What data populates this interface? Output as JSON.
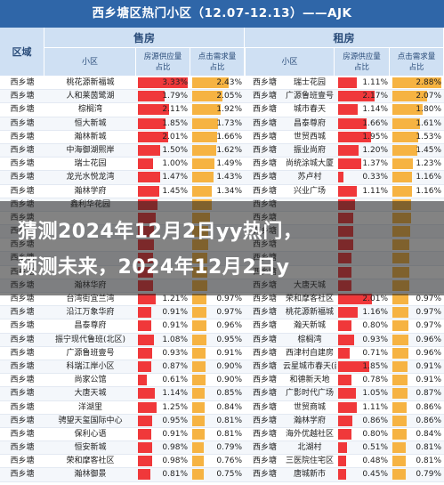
{
  "title": "西乡塘区热门小区（12.07-12.13）——AJK",
  "headers": {
    "district": "区域",
    "sale": "售房",
    "rent": "租房",
    "community": "小区",
    "supply": "房源供应量占比",
    "demand": "点击需求量占比"
  },
  "overlay": {
    "line1": "猜测2024年12月2日yy热门，",
    "line2": "预测未来，2024年12月2日y"
  },
  "colors": {
    "red": "#f0383a",
    "orange": "#f6b342"
  },
  "rows": [
    {
      "d": "西乡塘",
      "s": "桃花源新福城",
      "s1": "3.33%",
      "s1v": 3.33,
      "s2": "2.43%",
      "s2v": 2.43,
      "r": "西乡塘",
      "rc": "瑞士花园",
      "r1": "1.11%",
      "r1v": 1.11,
      "r2": "2.88%",
      "r2v": 2.88
    },
    {
      "d": "西乡塘",
      "s": "人和莱茵鹭湖",
      "s1": "1.79%",
      "s1v": 1.79,
      "s2": "2.05%",
      "s2v": 2.05,
      "r": "西乡塘",
      "rc": "广源鲁班壹号",
      "r1": "2.17%",
      "r1v": 2.17,
      "r2": "2.07%",
      "r2v": 2.07
    },
    {
      "d": "西乡塘",
      "s": "棕榈湾",
      "s1": "2.11%",
      "s1v": 2.11,
      "s2": "1.92%",
      "s2v": 1.92,
      "r": "西乡塘",
      "rc": "城市春天",
      "r1": "1.14%",
      "r1v": 1.14,
      "r2": "1.80%",
      "r2v": 1.8
    },
    {
      "d": "西乡塘",
      "s": "恒大新城",
      "s1": "1.85%",
      "s1v": 1.85,
      "s2": "1.73%",
      "s2v": 1.73,
      "r": "西乡塘",
      "rc": "昌泰尊府",
      "r1": "1.66%",
      "r1v": 1.66,
      "r2": "1.61%",
      "r2v": 1.61
    },
    {
      "d": "西乡塘",
      "s": "瀚林新城",
      "s1": "2.01%",
      "s1v": 2.01,
      "s2": "1.66%",
      "s2v": 1.66,
      "r": "西乡塘",
      "rc": "世贸西城",
      "r1": "1.95%",
      "r1v": 1.95,
      "r2": "1.53%",
      "r2v": 1.53
    },
    {
      "d": "西乡塘",
      "s": "中海御湖熙岸",
      "s1": "1.50%",
      "s1v": 1.5,
      "s2": "1.62%",
      "s2v": 1.62,
      "r": "西乡塘",
      "rc": "振业尚府",
      "r1": "1.20%",
      "r1v": 1.2,
      "r2": "1.45%",
      "r2v": 1.45
    },
    {
      "d": "西乡塘",
      "s": "瑞士花园",
      "s1": "1.00%",
      "s1v": 1.0,
      "s2": "1.49%",
      "s2v": 1.49,
      "r": "西乡塘",
      "rc": "尚统涂城大厦",
      "r1": "1.37%",
      "r1v": 1.37,
      "r2": "1.23%",
      "r2v": 1.23
    },
    {
      "d": "西乡塘",
      "s": "龙光水悦龙湾",
      "s1": "1.47%",
      "s1v": 1.47,
      "s2": "1.43%",
      "s2v": 1.43,
      "r": "西乡塘",
      "rc": "苏卢村",
      "r1": "0.33%",
      "r1v": 0.33,
      "r2": "1.16%",
      "r2v": 1.16
    },
    {
      "d": "西乡塘",
      "s": "瀚林学府",
      "s1": "1.45%",
      "s1v": 1.45,
      "s2": "1.34%",
      "s2v": 1.34,
      "r": "西乡塘",
      "rc": "兴业广场",
      "r1": "1.11%",
      "r1v": 1.11,
      "r2": "1.16%",
      "r2v": 1.16
    },
    {
      "d": "西乡塘",
      "s": "鑫利华花园",
      "s1": "",
      "s1v": 1.3,
      "s2": "",
      "s2v": 1.3,
      "r": "西乡塘",
      "rc": "",
      "r1": "",
      "r1v": 1.0,
      "r2": "",
      "r2v": 1.1
    },
    {
      "d": "西乡塘",
      "s": "",
      "s1": "",
      "s1v": 1.2,
      "s2": "",
      "s2v": 1.2,
      "r": "西乡塘",
      "rc": "",
      "r1": "",
      "r1v": 0.9,
      "r2": "",
      "r2v": 1.1
    },
    {
      "d": "西乡塘",
      "s": "",
      "s1": "",
      "s1v": 1.1,
      "s2": "",
      "s2v": 1.1,
      "r": "西乡塘",
      "rc": "",
      "r1": "",
      "r1v": 0.9,
      "r2": "",
      "r2v": 1.05
    },
    {
      "d": "西乡塘",
      "s": "",
      "s1": "",
      "s1v": 1.1,
      "s2": "",
      "s2v": 1.05,
      "r": "西乡塘",
      "rc": "",
      "r1": "",
      "r1v": 0.9,
      "r2": "",
      "r2v": 1.0
    },
    {
      "d": "西乡塘",
      "s": "",
      "s1": "",
      "s1v": 1.0,
      "s2": "",
      "s2v": 1.0,
      "r": "西乡塘",
      "rc": "",
      "r1": "",
      "r1v": 0.8,
      "r2": "",
      "r2v": 1.0
    },
    {
      "d": "西乡塘",
      "s": "",
      "s1": "",
      "s1v": 1.0,
      "s2": "",
      "s2v": 1.0,
      "r": "西乡塘",
      "rc": "",
      "r1": "",
      "r1v": 0.8,
      "r2": "",
      "r2v": 1.0
    },
    {
      "d": "西乡塘",
      "s": "瀚林华府",
      "s1": "",
      "s1v": 1.0,
      "s2": "",
      "s2v": 1.0,
      "r": "西乡塘",
      "rc": "大唐天城",
      "r1": "",
      "r1v": 0.8,
      "r2": "",
      "r2v": 0.98
    },
    {
      "d": "西乡塘",
      "s": "台湾街宜兰湾",
      "s1": "1.21%",
      "s1v": 1.21,
      "s2": "0.97%",
      "s2v": 0.97,
      "r": "西乡塘",
      "rc": "荣和摩客社区",
      "r1": "2.01%",
      "r1v": 2.01,
      "r2": "0.97%",
      "r2v": 0.97
    },
    {
      "d": "西乡塘",
      "s": "沿江万象华府",
      "s1": "0.91%",
      "s1v": 0.91,
      "s2": "0.97%",
      "s2v": 0.97,
      "r": "西乡塘",
      "rc": "桃花源新福城",
      "r1": "1.16%",
      "r1v": 1.16,
      "r2": "0.97%",
      "r2v": 0.97
    },
    {
      "d": "西乡塘",
      "s": "昌泰尊府",
      "s1": "0.91%",
      "s1v": 0.91,
      "s2": "0.96%",
      "s2v": 0.96,
      "r": "西乡塘",
      "rc": "瀚天新城",
      "r1": "0.80%",
      "r1v": 0.8,
      "r2": "0.97%",
      "r2v": 0.97
    },
    {
      "d": "西乡塘",
      "s": "振宁现代鲁班(北区)",
      "s1": "1.08%",
      "s1v": 1.08,
      "s2": "0.95%",
      "s2v": 0.95,
      "r": "西乡塘",
      "rc": "棕榈湾",
      "r1": "0.93%",
      "r1v": 0.93,
      "r2": "0.96%",
      "r2v": 0.96
    },
    {
      "d": "西乡塘",
      "s": "广源鲁班壹号",
      "s1": "0.93%",
      "s1v": 0.93,
      "s2": "0.91%",
      "s2v": 0.91,
      "r": "西乡塘",
      "rc": "西津村自建房",
      "r1": "0.71%",
      "r1v": 0.71,
      "r2": "0.96%",
      "r2v": 0.96
    },
    {
      "d": "西乡塘",
      "s": "科瑞江岸小区",
      "s1": "0.87%",
      "s1v": 0.87,
      "s2": "0.90%",
      "s2v": 0.9,
      "r": "西乡塘",
      "rc": "云星城市春天(西区)",
      "r1": "1.85%",
      "r1v": 1.85,
      "r2": "0.91%",
      "r2v": 0.91
    },
    {
      "d": "西乡塘",
      "s": "尚家公馆",
      "s1": "0.61%",
      "s1v": 0.61,
      "s2": "0.90%",
      "s2v": 0.9,
      "r": "西乡塘",
      "rc": "和德新天地",
      "r1": "0.78%",
      "r1v": 0.78,
      "r2": "0.91%",
      "r2v": 0.91
    },
    {
      "d": "西乡塘",
      "s": "大唐天城",
      "s1": "1.14%",
      "s1v": 1.14,
      "s2": "0.85%",
      "s2v": 0.85,
      "r": "西乡塘",
      "rc": "广影时代广场",
      "r1": "1.05%",
      "r1v": 1.05,
      "r2": "0.87%",
      "r2v": 0.87
    },
    {
      "d": "西乡塘",
      "s": "洋湖里",
      "s1": "1.25%",
      "s1v": 1.25,
      "s2": "0.84%",
      "s2v": 0.84,
      "r": "西乡塘",
      "rc": "世贸商城",
      "r1": "1.11%",
      "r1v": 1.11,
      "r2": "0.86%",
      "r2v": 0.86
    },
    {
      "d": "西乡塘",
      "s": "骋望天玺国际中心",
      "s1": "0.95%",
      "s1v": 0.95,
      "s2": "0.81%",
      "s2v": 0.81,
      "r": "西乡塘",
      "rc": "瀚林学府",
      "r1": "0.86%",
      "r1v": 0.86,
      "r2": "0.86%",
      "r2v": 0.86
    },
    {
      "d": "西乡塘",
      "s": "保利心语",
      "s1": "0.91%",
      "s1v": 0.91,
      "s2": "0.81%",
      "s2v": 0.81,
      "r": "西乡塘",
      "rc": "海外优越社区",
      "r1": "0.80%",
      "r1v": 0.8,
      "r2": "0.84%",
      "r2v": 0.84
    },
    {
      "d": "西乡塘",
      "s": "恒安新城",
      "s1": "0.98%",
      "s1v": 0.98,
      "s2": "0.79%",
      "s2v": 0.79,
      "r": "西乡塘",
      "rc": "北湖村",
      "r1": "0.51%",
      "r1v": 0.51,
      "r2": "0.81%",
      "r2v": 0.81
    },
    {
      "d": "西乡塘",
      "s": "荣和摩客社区",
      "s1": "0.98%",
      "s1v": 0.98,
      "s2": "0.76%",
      "s2v": 0.76,
      "r": "西乡塘",
      "rc": "三医院住宅区",
      "r1": "0.48%",
      "r1v": 0.48,
      "r2": "0.81%",
      "r2v": 0.81
    },
    {
      "d": "西乡塘",
      "s": "瀚林御景",
      "s1": "0.81%",
      "s1v": 0.81,
      "s2": "0.75%",
      "s2v": 0.75,
      "r": "西乡塘",
      "rc": "唐城新市",
      "r1": "0.45%",
      "r1v": 0.45,
      "r2": "0.79%",
      "r2v": 0.79
    }
  ]
}
